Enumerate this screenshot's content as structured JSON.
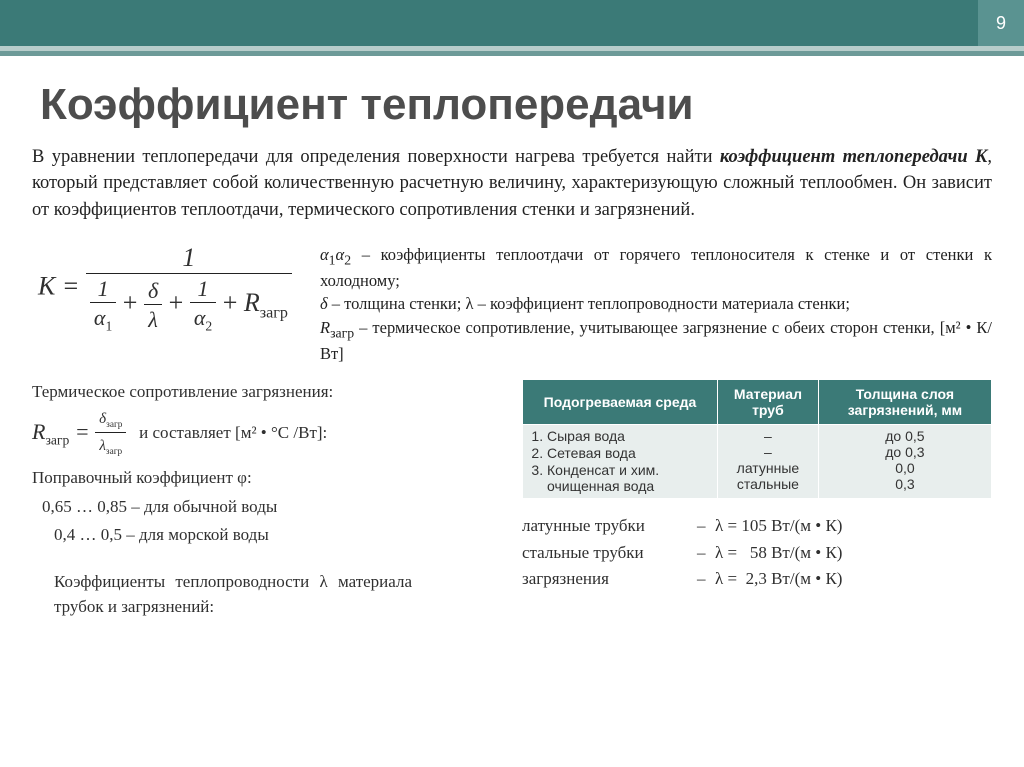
{
  "page_number": "9",
  "title": "Коэффициент теплопередачи",
  "intro_html": "В уравнении теплопередачи для определения поверхности нагрева требуется найти <em>коэффициент теплопередачи K</em>, который представляет собой количественную расчетную величину, характеризующую сложный теплообмен. Он зависит от коэффициентов теплоотдачи, термического сопротивления стенки и загрязнений.",
  "definitions_html": "<em>α</em><sub>1</sub><em>α</em><sub>2</sub> – коэффициенты теплоотдачи от горячего теплоносителя к стенке и от стенки к холодному;<br><em>δ</em> – толщина стенки; λ – коэффициент теплопроводности материала стенки;<br><em>R</em><sub>загр</sub> – термическое сопротивление, учитывающее загрязнение с обеих сторон стенки,  [м² • К/Вт]",
  "thermal_resistance_label": "Термическое сопротивление загрязнения:",
  "thermal_resistance_unit": "и составляет [м² • °C /Вт]:",
  "correction_label": "Поправочный коэффициент φ:",
  "correction_normal": "0,65 … 0,85 – для обычной воды",
  "correction_sea": "0,4 … 0,5 – для морской воды",
  "lambda_material_label": "Коэффициенты теплопроводности λ материала трубок и загрязнений:",
  "table": {
    "headers": [
      "Подогреваемая среда",
      "Материал труб",
      "Толщина слоя загрязнений, мм"
    ],
    "env_items": [
      "Сырая вода",
      "Сетевая вода",
      "Конденсат и хим. очищенная вода"
    ],
    "materials": [
      "–",
      "–",
      "латунные<br>стальные"
    ],
    "thickness": [
      "до 0,5",
      "до 0,3",
      "0,0<br>0,3"
    ],
    "header_bg": "#3b7a77",
    "cell_bg": "#e8eeed"
  },
  "lambdas": [
    {
      "label": "латунные трубки",
      "val": "λ = 105 Вт/(м • К)"
    },
    {
      "label": "стальные трубки",
      "val": "λ =   58 Вт/(м • К)"
    },
    {
      "label": "загрязнения",
      "val": "λ =  2,3 Вт/(м • К)"
    }
  ],
  "colors": {
    "banner": "#3b7a77",
    "pagebox": "#5a9391",
    "stripe_light": "#b7cdcb",
    "stripe_dark": "#6d9a98"
  }
}
